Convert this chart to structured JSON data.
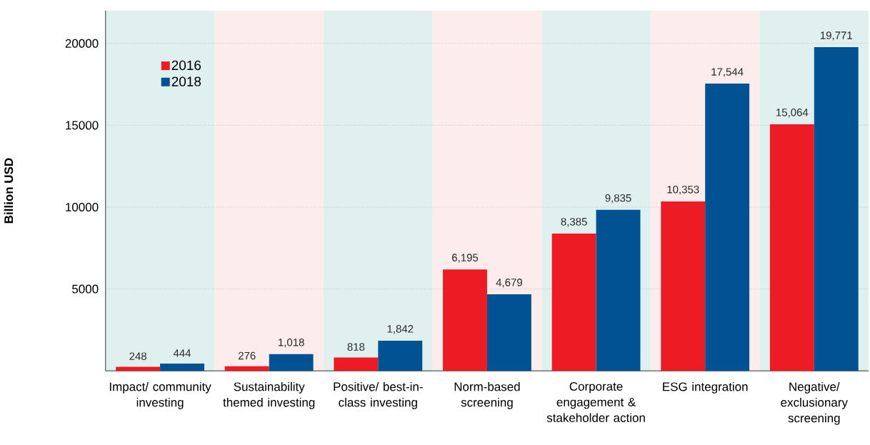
{
  "chart_data": {
    "type": "bar",
    "ylabel": "Billion USD",
    "categories": [
      "Impact/ community investing",
      "Sustainability themed investing",
      "Positive/ best-in-class investing",
      "Norm-based screening",
      "Corporate engagement & stakeholder action",
      "ESG integration",
      "Negative/ exclusionary screening"
    ],
    "series": [
      {
        "name": "2016",
        "color": "#ed1c24",
        "values": [
          248,
          276,
          818,
          6195,
          8385,
          10353,
          15064
        ],
        "value_labels": [
          "248",
          "276",
          "818",
          "6,195",
          "8,385",
          "10,353",
          "15,064"
        ]
      },
      {
        "name": "2018",
        "color": "#005293",
        "values": [
          444,
          1018,
          1842,
          4679,
          9835,
          17544,
          19771
        ],
        "value_labels": [
          "444",
          "1,018",
          "1,842",
          "4,679",
          "9,835",
          "17,544",
          "19,771"
        ]
      }
    ],
    "ylim": [
      0,
      22000
    ],
    "yticks": [
      5000,
      10000,
      15000,
      20000
    ],
    "grid": "y",
    "legend": "top left",
    "bands": [
      {
        "axis": "x",
        "from": "Impact/ community investing",
        "to": "Impact/ community investing",
        "color": "#e0f0ee"
      },
      {
        "axis": "x",
        "from": "Sustainability themed investing",
        "to": "Sustainability themed investing",
        "color": "#fcecec"
      },
      {
        "axis": "x",
        "from": "Positive/ best-in-class investing",
        "to": "Positive/ best-in-class investing",
        "color": "#e0f0ee"
      },
      {
        "axis": "x",
        "from": "Norm-based screening",
        "to": "Norm-based screening",
        "color": "#fcecec"
      },
      {
        "axis": "x",
        "from": "Corporate engagement & stakeholder action",
        "to": "Corporate engagement & stakeholder action",
        "color": "#e0f0ee"
      },
      {
        "axis": "x",
        "from": "ESG integration",
        "to": "ESG integration",
        "color": "#fcecec"
      },
      {
        "axis": "x",
        "from": "Negative/ exclusionary screening",
        "to": "Negative/ exclusionary screening",
        "color": "#e0f0ee"
      }
    ]
  }
}
